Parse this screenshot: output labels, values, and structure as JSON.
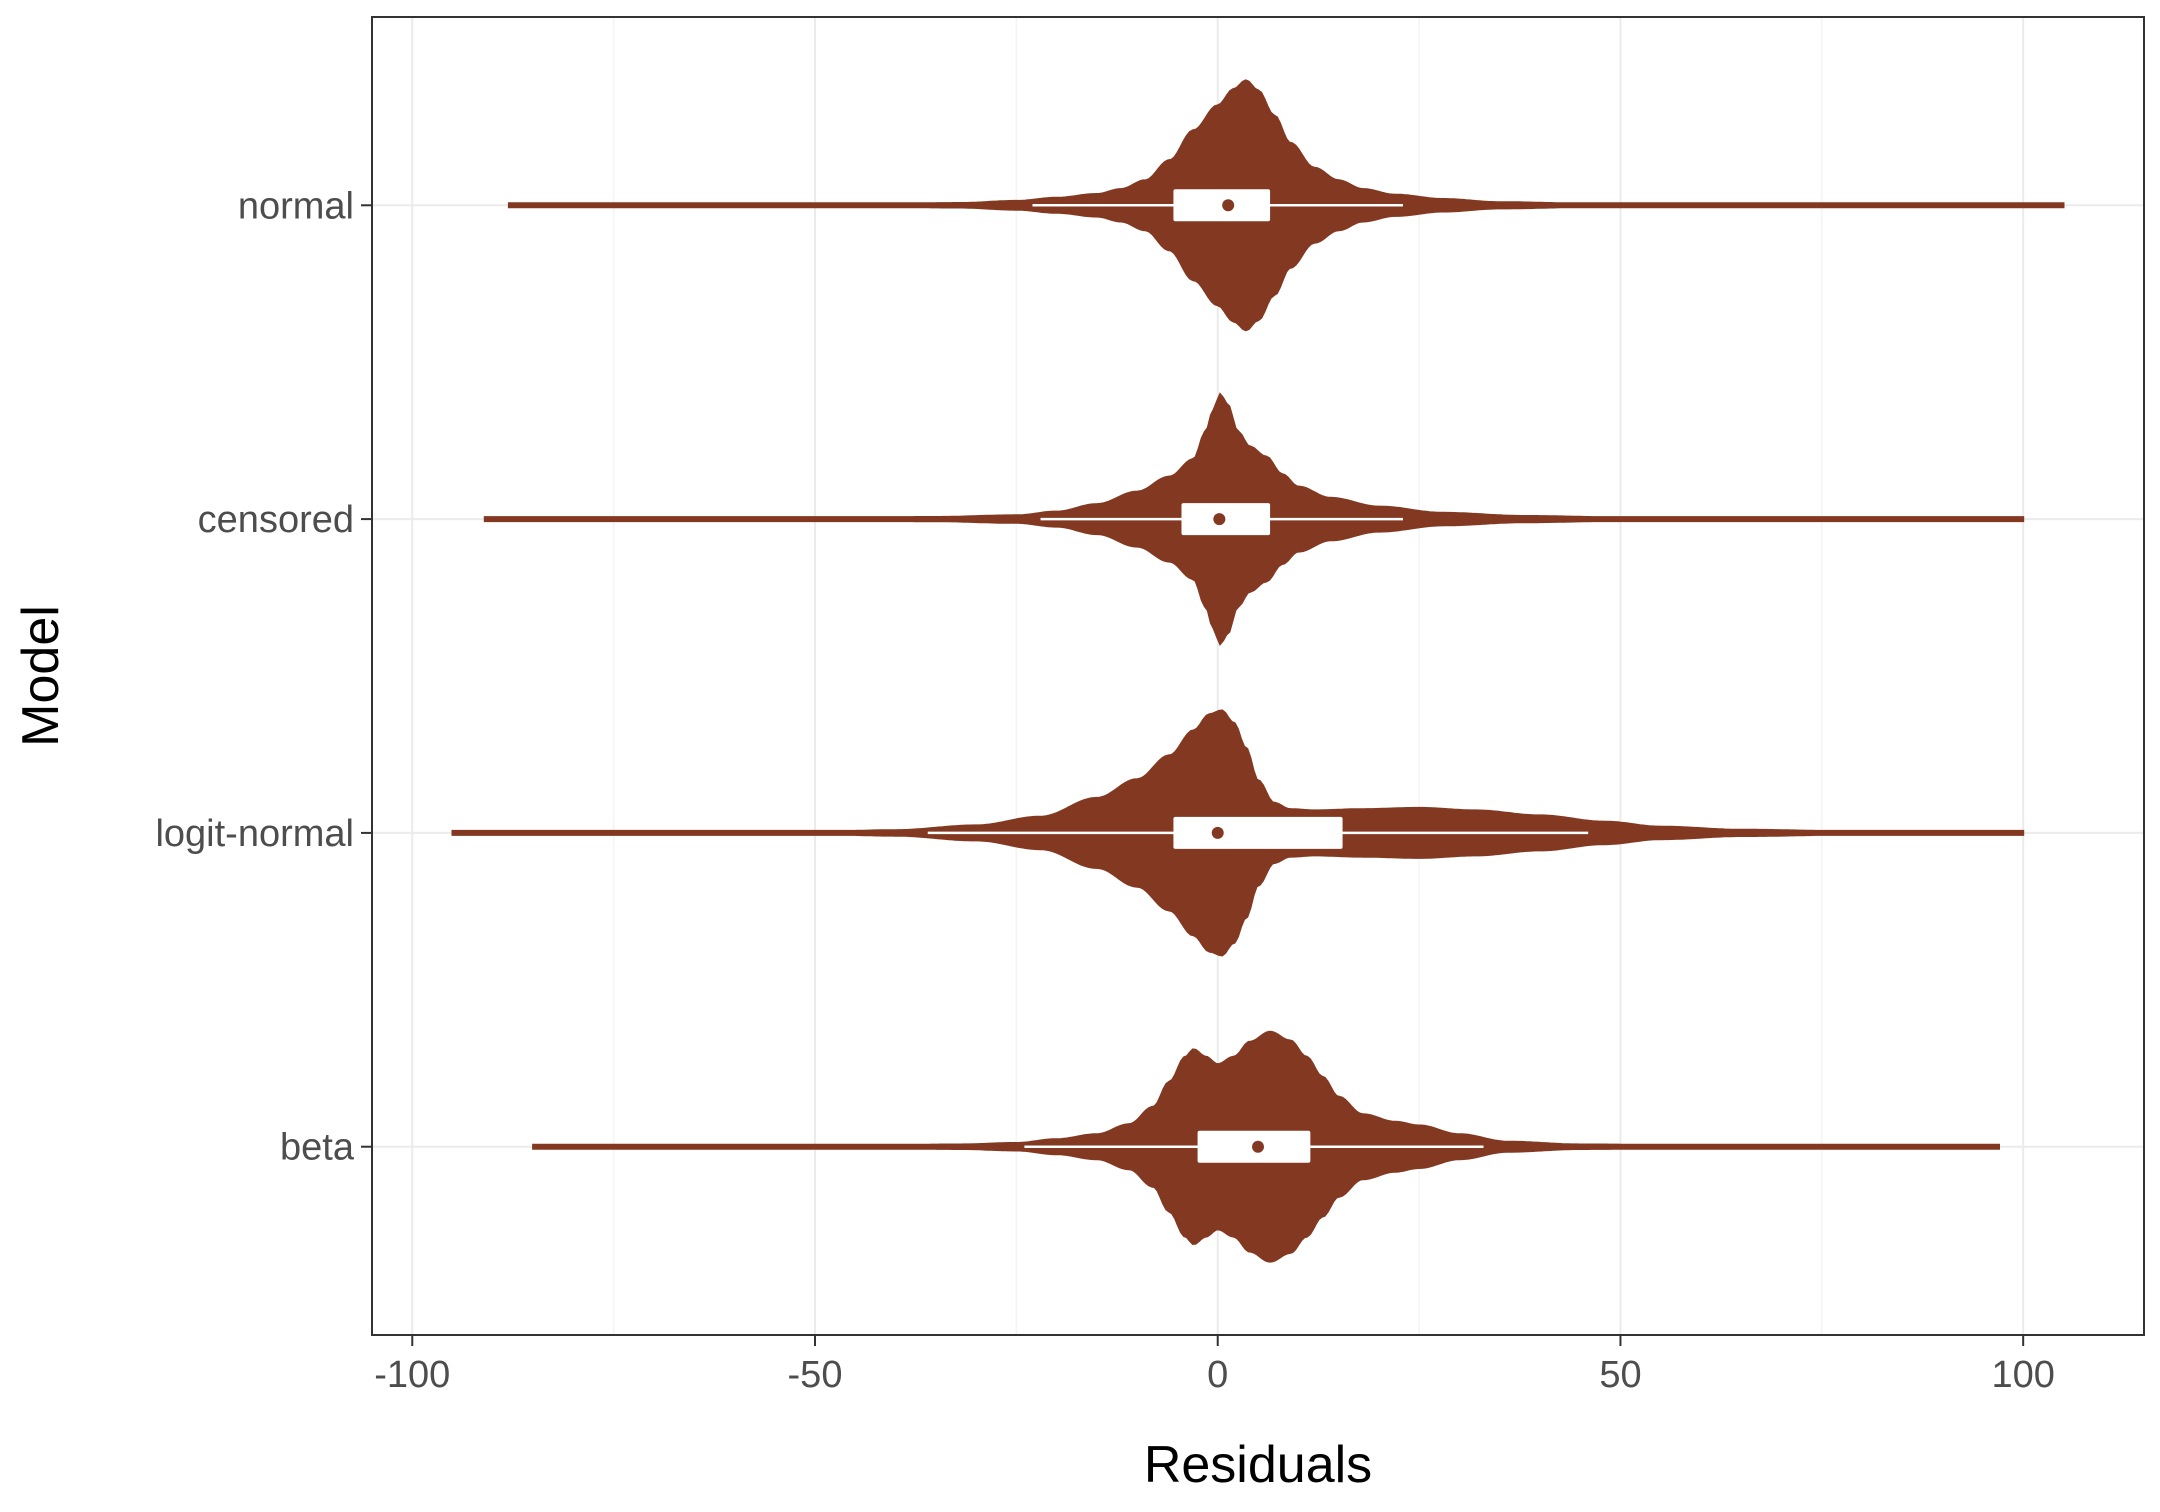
{
  "chart_data": {
    "type": "violin",
    "orientation": "horizontal",
    "title": "",
    "xlabel": "Residuals",
    "ylabel": "Model",
    "xlim": [
      -105,
      115
    ],
    "xticks": [
      -100,
      -50,
      0,
      50,
      100
    ],
    "xtick_labels": [
      "-100",
      "-50",
      "0",
      "50",
      "100"
    ],
    "grid": true,
    "legend": "none",
    "colors": {
      "fill": "#833921",
      "box": "#ffffff",
      "panel_border": "#333333",
      "grid_major": "#ebebeb",
      "grid_minor": "#f4f4f4"
    },
    "series": [
      {
        "name": "normal",
        "range": [
          -88,
          105
        ],
        "box": {
          "lower_whisker": -23,
          "q1": -5.5,
          "median": 1.3,
          "q3": 6.5,
          "upper_whisker": 23
        },
        "density": [
          [
            -88,
            0.004
          ],
          [
            -65,
            0.006
          ],
          [
            -45,
            0.01
          ],
          [
            -32,
            0.018
          ],
          [
            -25,
            0.035
          ],
          [
            -20,
            0.06
          ],
          [
            -15,
            0.09
          ],
          [
            -12,
            0.13
          ],
          [
            -9,
            0.2
          ],
          [
            -6,
            0.36
          ],
          [
            -3,
            0.6
          ],
          [
            0,
            0.8
          ],
          [
            2,
            0.93
          ],
          [
            3.5,
            1.0
          ],
          [
            5,
            0.92
          ],
          [
            7,
            0.72
          ],
          [
            9,
            0.5
          ],
          [
            12,
            0.3
          ],
          [
            15,
            0.2
          ],
          [
            18,
            0.13
          ],
          [
            22,
            0.085
          ],
          [
            28,
            0.05
          ],
          [
            35,
            0.025
          ],
          [
            45,
            0.015
          ],
          [
            60,
            0.012
          ],
          [
            80,
            0.006
          ],
          [
            105,
            0.004
          ]
        ]
      },
      {
        "name": "censored",
        "range": [
          -91,
          100
        ],
        "box": {
          "lower_whisker": -22,
          "q1": -4.5,
          "median": 0.2,
          "q3": 6.5,
          "upper_whisker": 23
        },
        "density": [
          [
            -91,
            0.004
          ],
          [
            -70,
            0.006
          ],
          [
            -50,
            0.009
          ],
          [
            -35,
            0.017
          ],
          [
            -25,
            0.03
          ],
          [
            -20,
            0.06
          ],
          [
            -15,
            0.12
          ],
          [
            -10,
            0.22
          ],
          [
            -6,
            0.34
          ],
          [
            -3,
            0.48
          ],
          [
            -1.5,
            0.7
          ],
          [
            -0.5,
            0.88
          ],
          [
            0.3,
            1.0
          ],
          [
            1.2,
            0.92
          ],
          [
            2.5,
            0.7
          ],
          [
            4,
            0.58
          ],
          [
            6,
            0.5
          ],
          [
            8,
            0.36
          ],
          [
            10,
            0.26
          ],
          [
            14,
            0.17
          ],
          [
            20,
            0.1
          ],
          [
            28,
            0.05
          ],
          [
            38,
            0.025
          ],
          [
            50,
            0.014
          ],
          [
            65,
            0.01
          ],
          [
            80,
            0.007
          ],
          [
            100,
            0.004
          ]
        ]
      },
      {
        "name": "logit-normal",
        "range": [
          -95,
          100
        ],
        "box": {
          "lower_whisker": -36,
          "q1": -5.5,
          "median": 0,
          "q3": 15.5,
          "upper_whisker": 46
        },
        "density": [
          [
            -95,
            0.004
          ],
          [
            -75,
            0.006
          ],
          [
            -50,
            0.01
          ],
          [
            -40,
            0.022
          ],
          [
            -30,
            0.06
          ],
          [
            -22,
            0.13
          ],
          [
            -15,
            0.28
          ],
          [
            -10,
            0.43
          ],
          [
            -6,
            0.62
          ],
          [
            -3,
            0.82
          ],
          [
            -1,
            0.95
          ],
          [
            0.5,
            0.98
          ],
          [
            2,
            0.88
          ],
          [
            3.5,
            0.68
          ],
          [
            5,
            0.42
          ],
          [
            7,
            0.24
          ],
          [
            9,
            0.19
          ],
          [
            12,
            0.18
          ],
          [
            18,
            0.19
          ],
          [
            25,
            0.2
          ],
          [
            32,
            0.18
          ],
          [
            40,
            0.14
          ],
          [
            48,
            0.09
          ],
          [
            55,
            0.05
          ],
          [
            65,
            0.025
          ],
          [
            80,
            0.012
          ],
          [
            100,
            0.004
          ]
        ]
      },
      {
        "name": "beta",
        "range": [
          -85,
          97
        ],
        "box": {
          "lower_whisker": -24,
          "q1": -2.5,
          "median": 5,
          "q3": 11.5,
          "upper_whisker": 33
        },
        "density": [
          [
            -85,
            0.004
          ],
          [
            -65,
            0.007
          ],
          [
            -45,
            0.01
          ],
          [
            -32,
            0.018
          ],
          [
            -25,
            0.03
          ],
          [
            -20,
            0.06
          ],
          [
            -15,
            0.1
          ],
          [
            -11,
            0.18
          ],
          [
            -8,
            0.32
          ],
          [
            -6,
            0.52
          ],
          [
            -4,
            0.72
          ],
          [
            -3,
            0.78
          ],
          [
            -1.5,
            0.72
          ],
          [
            0,
            0.66
          ],
          [
            2,
            0.72
          ],
          [
            4,
            0.84
          ],
          [
            6.5,
            0.92
          ],
          [
            9,
            0.85
          ],
          [
            11,
            0.72
          ],
          [
            13,
            0.56
          ],
          [
            15,
            0.4
          ],
          [
            18,
            0.26
          ],
          [
            22,
            0.2
          ],
          [
            25,
            0.17
          ],
          [
            30,
            0.1
          ],
          [
            36,
            0.04
          ],
          [
            45,
            0.018
          ],
          [
            60,
            0.012
          ],
          [
            75,
            0.008
          ],
          [
            97,
            0.004
          ]
        ]
      }
    ]
  }
}
